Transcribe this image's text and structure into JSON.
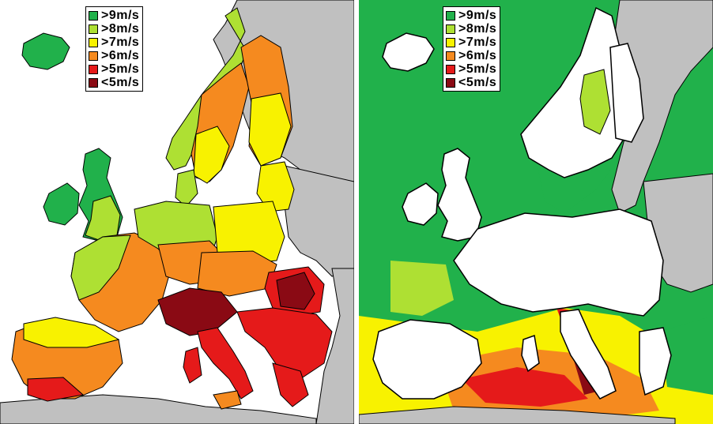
{
  "legend": {
    "items": [
      {
        "label": ">9m/s",
        "color": "#21b14b"
      },
      {
        "label": ">8m/s",
        "color": "#aee033"
      },
      {
        "label": ">7m/s",
        "color": "#f8f200"
      },
      {
        "label": ">6m/s",
        "color": "#f58a1f"
      },
      {
        "label": ">5m/s",
        "color": "#e51a1a"
      },
      {
        "label": "<5m/s",
        "color": "#8a0a14"
      }
    ]
  },
  "colors": {
    "sea": "#ffffff",
    "non_eu_land": "#c0c0c0",
    "border": "#000000",
    "no_data_land": "#ffffff"
  },
  "maps": [
    {
      "id": "onshore",
      "description_key": "left"
    },
    {
      "id": "offshore",
      "description_key": "right"
    }
  ]
}
